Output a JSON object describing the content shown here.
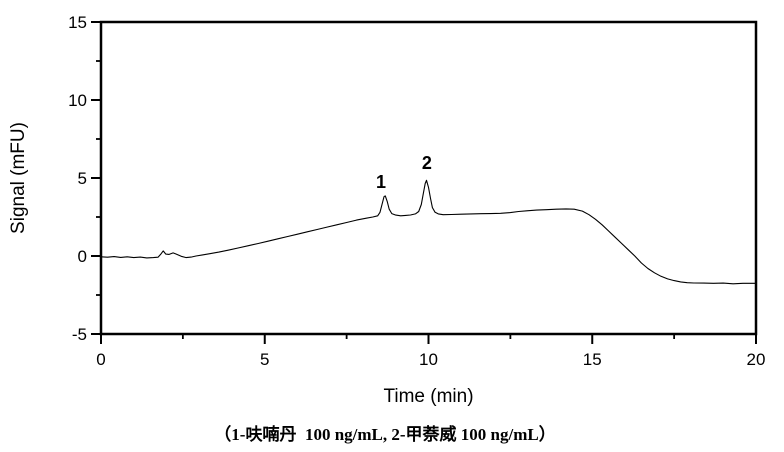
{
  "caption": "（1-呋喃丹  100 ng/mL, 2-甲萘威 100 ng/mL）",
  "colors": {
    "trace": "#000000",
    "axis": "#000000",
    "background": "#ffffff"
  },
  "chart_data": {
    "type": "line",
    "title": "",
    "xlabel": "Time (min)",
    "ylabel": "Signal (mFU)",
    "xlim": [
      0,
      20
    ],
    "ylim": [
      -5,
      15
    ],
    "x_major_ticks": [
      0,
      5,
      10,
      15,
      20
    ],
    "x_minor_ticks": [
      2.5,
      7.5,
      12.5,
      17.5
    ],
    "y_major_ticks": [
      -5,
      0,
      5,
      10,
      15
    ],
    "y_minor_ticks": [
      -2.5,
      2.5,
      7.5,
      12.5
    ],
    "grid": false,
    "legend": "none",
    "annotations": [
      {
        "label": "1",
        "t": 8.55,
        "s": 4.75
      },
      {
        "label": "2",
        "t": 9.95,
        "s": 5.95
      }
    ],
    "peaks": [
      {
        "label": "1",
        "compound": "呋喃丹",
        "concentration": "100 ng/mL",
        "time_min": 8.66,
        "signal_mfu": 3.85
      },
      {
        "label": "2",
        "compound": "甲萘威",
        "concentration": "100 ng/mL",
        "time_min": 9.94,
        "signal_mfu": 4.85
      }
    ],
    "series": [
      {
        "name": "chromatogram-signal",
        "points": [
          [
            0,
            -0.05
          ],
          [
            0.2,
            -0.08
          ],
          [
            0.4,
            -0.04
          ],
          [
            0.6,
            -0.09
          ],
          [
            0.8,
            -0.05
          ],
          [
            1.0,
            -0.1
          ],
          [
            1.2,
            -0.07
          ],
          [
            1.4,
            -0.12
          ],
          [
            1.6,
            -0.1
          ],
          [
            1.74,
            -0.08
          ],
          [
            1.82,
            0.1
          ],
          [
            1.9,
            0.33
          ],
          [
            1.98,
            0.12
          ],
          [
            2.08,
            0.1
          ],
          [
            2.2,
            0.2
          ],
          [
            2.3,
            0.12
          ],
          [
            2.45,
            -0.02
          ],
          [
            2.6,
            -0.1
          ],
          [
            2.75,
            -0.07
          ],
          [
            2.9,
            0.0
          ],
          [
            3.1,
            0.07
          ],
          [
            3.3,
            0.14
          ],
          [
            3.6,
            0.25
          ],
          [
            3.9,
            0.38
          ],
          [
            4.2,
            0.52
          ],
          [
            4.5,
            0.66
          ],
          [
            4.8,
            0.8
          ],
          [
            5.1,
            0.95
          ],
          [
            5.4,
            1.1
          ],
          [
            5.7,
            1.25
          ],
          [
            6.0,
            1.4
          ],
          [
            6.3,
            1.55
          ],
          [
            6.6,
            1.7
          ],
          [
            6.9,
            1.85
          ],
          [
            7.2,
            2.0
          ],
          [
            7.5,
            2.15
          ],
          [
            7.8,
            2.3
          ],
          [
            8.1,
            2.42
          ],
          [
            8.3,
            2.5
          ],
          [
            8.45,
            2.58
          ],
          [
            8.52,
            2.8
          ],
          [
            8.58,
            3.3
          ],
          [
            8.64,
            3.8
          ],
          [
            8.68,
            3.85
          ],
          [
            8.74,
            3.5
          ],
          [
            8.8,
            3.0
          ],
          [
            8.88,
            2.72
          ],
          [
            9.0,
            2.62
          ],
          [
            9.15,
            2.58
          ],
          [
            9.3,
            2.6
          ],
          [
            9.45,
            2.63
          ],
          [
            9.6,
            2.7
          ],
          [
            9.7,
            2.85
          ],
          [
            9.78,
            3.3
          ],
          [
            9.84,
            4.0
          ],
          [
            9.9,
            4.65
          ],
          [
            9.94,
            4.85
          ],
          [
            10.0,
            4.4
          ],
          [
            10.06,
            3.7
          ],
          [
            10.12,
            3.1
          ],
          [
            10.2,
            2.8
          ],
          [
            10.3,
            2.7
          ],
          [
            10.45,
            2.65
          ],
          [
            10.7,
            2.66
          ],
          [
            11.0,
            2.68
          ],
          [
            11.3,
            2.7
          ],
          [
            11.6,
            2.71
          ],
          [
            11.9,
            2.72
          ],
          [
            12.2,
            2.74
          ],
          [
            12.5,
            2.78
          ],
          [
            12.75,
            2.85
          ],
          [
            13.0,
            2.9
          ],
          [
            13.3,
            2.94
          ],
          [
            13.6,
            2.97
          ],
          [
            13.9,
            3.0
          ],
          [
            14.2,
            3.02
          ],
          [
            14.45,
            3.0
          ],
          [
            14.7,
            2.88
          ],
          [
            14.9,
            2.65
          ],
          [
            15.1,
            2.35
          ],
          [
            15.3,
            2.0
          ],
          [
            15.5,
            1.6
          ],
          [
            15.7,
            1.2
          ],
          [
            15.9,
            0.8
          ],
          [
            16.1,
            0.4
          ],
          [
            16.3,
            0.0
          ],
          [
            16.5,
            -0.45
          ],
          [
            16.7,
            -0.8
          ],
          [
            16.9,
            -1.08
          ],
          [
            17.1,
            -1.3
          ],
          [
            17.3,
            -1.47
          ],
          [
            17.5,
            -1.58
          ],
          [
            17.7,
            -1.66
          ],
          [
            17.9,
            -1.71
          ],
          [
            18.1,
            -1.73
          ],
          [
            18.4,
            -1.74
          ],
          [
            18.7,
            -1.75
          ],
          [
            19.0,
            -1.74
          ],
          [
            19.3,
            -1.78
          ],
          [
            19.6,
            -1.75
          ],
          [
            20,
            -1.75
          ]
        ]
      }
    ]
  }
}
